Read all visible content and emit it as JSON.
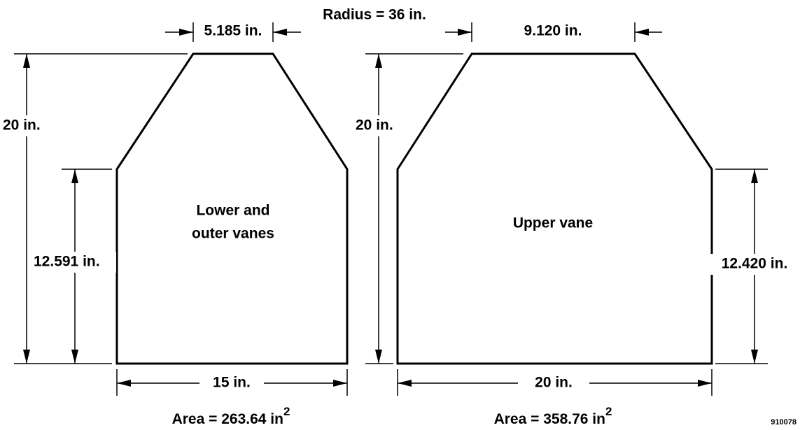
{
  "radius_label": "Radius = 36 in.",
  "left_vane": {
    "top_width": "5.185 in.",
    "height": "20 in.",
    "side_height": "12.591 in.",
    "name_lines": [
      "Lower and",
      "outer vanes"
    ],
    "bottom_width": "15 in.",
    "area": {
      "text": "Area = 263.64 in",
      "exponent": "2"
    }
  },
  "right_vane": {
    "top_width": "9.120 in.",
    "height": "20 in.",
    "side_height": "12.420 in.",
    "name_lines": [
      "Upper vane"
    ],
    "bottom_width": "20 in.",
    "area": {
      "text": "Area = 358.76 in",
      "exponent": "2"
    }
  },
  "figure_id": "910078"
}
